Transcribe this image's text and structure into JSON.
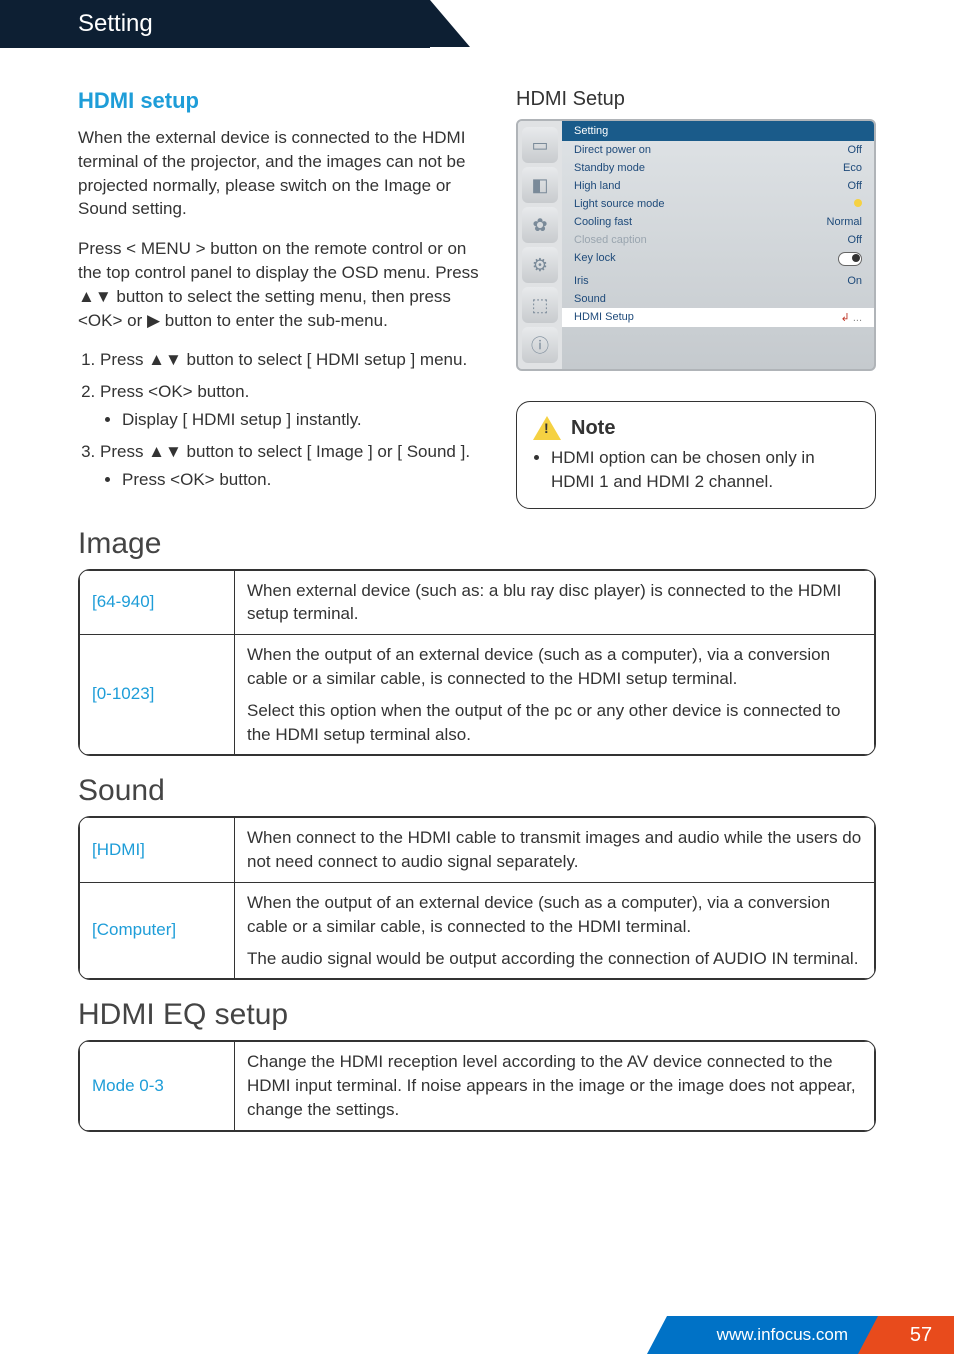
{
  "header": {
    "title": "Setting"
  },
  "section_title": "HDMI setup",
  "intro_p1": "When the external device is connected to the HDMI terminal of the projector, and the images can not be projected normally, please switch on the Image or Sound setting.",
  "intro_p2": "Press < MENU > button on the remote control or on the top control panel to display the OSD menu. Press ▲▼ button to select the setting menu, then press <OK> or ▶ button to enter the sub-menu.",
  "steps": {
    "s1": "Press ▲▼ button to select [ HDMI setup ] menu.",
    "s2": "Press <OK> button.",
    "s2b": "Display [ HDMI setup ] instantly.",
    "s3": "Press ▲▼ button to select [ Image ] or [ Sound ].",
    "s3b": "Press <OK> button."
  },
  "osd_title": "HDMI Setup",
  "osd": {
    "header": "Setting",
    "rows": [
      {
        "label": "Direct power on",
        "value": "Off"
      },
      {
        "label": "Standby mode",
        "value": "Eco"
      },
      {
        "label": "High land",
        "value": "Off"
      },
      {
        "label": "Light source mode",
        "value": "__dot"
      },
      {
        "label": "Cooling fast",
        "value": "Normal"
      },
      {
        "label": "Closed caption",
        "value": "Off",
        "dim": true
      },
      {
        "label": "Key lock",
        "value": "__toggle"
      },
      {
        "label": "Iris",
        "value": "On"
      },
      {
        "label": "Sound",
        "value": ""
      },
      {
        "label": "HDMI Setup",
        "value": "__enter",
        "hl": true
      }
    ]
  },
  "note": {
    "label": "Note",
    "text": "HDMI option can be chosen only in HDMI 1 and HDMI 2 channel."
  },
  "image_section": {
    "title": "Image",
    "rows": [
      {
        "key": "[64-940]",
        "desc": [
          "When external device (such as: a blu ray disc player) is connected to the HDMI setup terminal."
        ]
      },
      {
        "key": "[0-1023]",
        "desc": [
          "When the output of an external device (such as a computer), via a conversion cable or a similar cable, is connected to the HDMI setup terminal.",
          "Select this option when the output of the pc or any other device is connected to the HDMI setup terminal also."
        ]
      }
    ]
  },
  "sound_section": {
    "title": "Sound",
    "rows": [
      {
        "key": "[HDMI]",
        "desc": [
          "When connect to the HDMI cable to transmit images and audio while the users do not need connect to audio signal separately."
        ]
      },
      {
        "key": "[Computer]",
        "desc": [
          "When the output of an external device (such as a computer), via a conversion cable or a similar cable, is connected to the HDMI terminal.",
          "The audio signal would be output according the connection of AUDIO IN terminal."
        ]
      }
    ]
  },
  "eq_section": {
    "title": "HDMI EQ setup",
    "rows": [
      {
        "key": "Mode 0-3",
        "desc": [
          "Change the HDMI reception level according to the AV device connected to the HDMI input terminal. If noise appears in the image or the image does not appear, change the settings."
        ]
      }
    ]
  },
  "footer": {
    "url": "www.infocus.com",
    "page": "57"
  }
}
